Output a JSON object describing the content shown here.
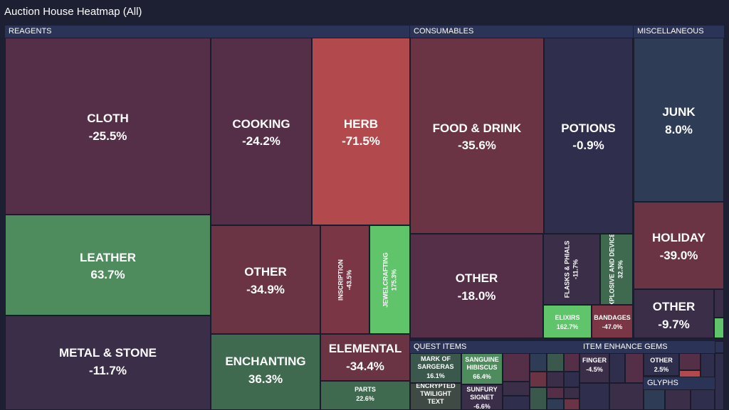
{
  "title": "Auction House Heatmap (All)",
  "colors": {
    "background": "#1d1f33",
    "header": "#2b3356",
    "negative": "#b24a4d",
    "neutral": "#3b2e48",
    "positive": "#5fc46a"
  },
  "chart_data": {
    "type": "heatmap",
    "subtype": "treemap",
    "title": "Auction House Heatmap (All)",
    "groups": [
      {
        "name": "REAGENTS",
        "items": [
          {
            "name": "CLOTH",
            "change": "-25.5%"
          },
          {
            "name": "LEATHER",
            "change": "63.7%"
          },
          {
            "name": "METAL & STONE",
            "change": "-11.7%"
          },
          {
            "name": "COOKING",
            "change": "-24.2%"
          },
          {
            "name": "HERB",
            "change": "-71.5%"
          },
          {
            "name": "OTHER",
            "change": "-34.9%"
          },
          {
            "name": "INSCRIPTION",
            "change": "-43.5%"
          },
          {
            "name": "JEWELCRAFTING",
            "change": "175.3%"
          },
          {
            "name": "ENCHANTING",
            "change": "36.3%"
          },
          {
            "name": "ELEMENTAL",
            "change": "-34.4%"
          },
          {
            "name": "PARTS",
            "change": "22.6%"
          }
        ]
      },
      {
        "name": "CONSUMABLES",
        "items": [
          {
            "name": "FOOD & DRINK",
            "change": "-35.6%"
          },
          {
            "name": "POTIONS",
            "change": "-0.9%"
          },
          {
            "name": "OTHER",
            "change": "-18.0%"
          },
          {
            "name": "FLASKS & PHIALS",
            "change": "-11.7%"
          },
          {
            "name": "EXPLOSIVE AND DEVICES",
            "change": "32.3%"
          },
          {
            "name": "ELIXIRS",
            "change": "162.7%"
          },
          {
            "name": "BANDAGES",
            "change": "-47.0%"
          }
        ]
      },
      {
        "name": "MISCELLANEOUS",
        "items": [
          {
            "name": "JUNK",
            "change": "8.0%"
          },
          {
            "name": "HOLIDAY",
            "change": "-39.0%"
          },
          {
            "name": "OTHER",
            "change": "-9.7%"
          }
        ]
      },
      {
        "name": "QUEST ITEMS",
        "items": [
          {
            "name": "MARK OF SARGERAS",
            "change": "16.1%"
          },
          {
            "name": "SANGUINE HIBISCUS",
            "change": "66.4%"
          },
          {
            "name": "ENCRYPTED TWILIGHT TEXT",
            "change": ""
          },
          {
            "name": "SUNFURY SIGNET",
            "change": "-6.6%"
          }
        ]
      },
      {
        "name": "ITEM ENHANCE GEMS",
        "items": [
          {
            "name": "FINGER",
            "change": "-4.5%"
          },
          {
            "name": "OTHER",
            "change": "2.5%"
          }
        ]
      },
      {
        "name": "GLYPHS",
        "items": []
      }
    ]
  }
}
